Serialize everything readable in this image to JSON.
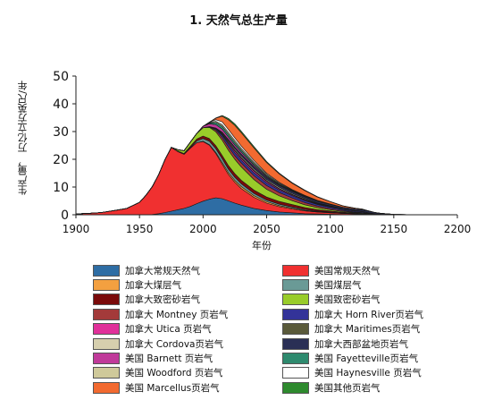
{
  "chart_data": {
    "type": "area",
    "title": "1. 天然气总生产量",
    "xlabel": "年份",
    "ylabel": "生产量， 万亿立方英尺/年",
    "xlim": [
      1900,
      2200
    ],
    "ylim": [
      0,
      50
    ],
    "x_ticks": [
      "1900",
      "1950",
      "2000",
      "2050",
      "2100",
      "2150",
      "2200"
    ],
    "y_ticks": [
      "0",
      "10",
      "20",
      "30",
      "40",
      "50"
    ],
    "legend_position": "below",
    "x": [
      1900,
      1910,
      1920,
      1930,
      1940,
      1950,
      1955,
      1960,
      1965,
      1970,
      1975,
      1980,
      1985,
      1990,
      1995,
      2000,
      2005,
      2010,
      2015,
      2020,
      2025,
      2030,
      2040,
      2050,
      2060,
      2070,
      2080,
      2090,
      2100,
      2110,
      2120,
      2125,
      2130,
      2135,
      2140,
      2150,
      2160,
      2170,
      2180
    ],
    "series": [
      {
        "name": "加拿大常规天然气",
        "color": "#2e6da4",
        "values": [
          0,
          0,
          0,
          0,
          0,
          0,
          0,
          0.1,
          0.4,
          0.8,
          1.3,
          1.8,
          2.3,
          3,
          4,
          4.9,
          5.6,
          6.1,
          5.8,
          5,
          4.2,
          3.5,
          2.3,
          1.5,
          1,
          0.7,
          0.4,
          0.3,
          0.2,
          0.1,
          0.1,
          0,
          0,
          0,
          0,
          0,
          0,
          0,
          0
        ]
      },
      {
        "name": "美国常规天然气",
        "color": "#f03030",
        "values": [
          0.3,
          0.5,
          0.8,
          1.5,
          2.3,
          4.5,
          7,
          10,
          14,
          19,
          23,
          21,
          19.5,
          21,
          22,
          21.5,
          19.5,
          16,
          12.5,
          9.5,
          7.5,
          6,
          4,
          2.7,
          1.9,
          1.4,
          1,
          0.7,
          0.5,
          0.35,
          0.25,
          0.2,
          0.15,
          0.1,
          0.1,
          0.05,
          0,
          0,
          0
        ]
      },
      {
        "name": "加拿大煤层气",
        "color": "#f3a040",
        "values": [
          0,
          0,
          0,
          0,
          0,
          0,
          0,
          0,
          0,
          0,
          0,
          0,
          0,
          0,
          0,
          0.1,
          0.2,
          0.4,
          0.6,
          0.7,
          0.7,
          0.7,
          0.6,
          0.5,
          0.4,
          0.3,
          0.2,
          0.15,
          0.1,
          0.05,
          0,
          0,
          0,
          0,
          0,
          0,
          0,
          0,
          0
        ]
      },
      {
        "name": "美国煤层气",
        "color": "#6a9a96",
        "values": [
          0,
          0,
          0,
          0,
          0,
          0,
          0,
          0,
          0,
          0,
          0,
          0,
          0,
          0.2,
          0.6,
          1,
          1.2,
          1.3,
          1.3,
          1.2,
          1.1,
          1,
          0.8,
          0.6,
          0.5,
          0.4,
          0.3,
          0.2,
          0.15,
          0.1,
          0.05,
          0,
          0,
          0,
          0,
          0,
          0,
          0,
          0
        ]
      },
      {
        "name": "加拿大致密砂岩气",
        "color": "#7a0a0a",
        "values": [
          0,
          0,
          0,
          0,
          0,
          0,
          0,
          0,
          0,
          0,
          0,
          0.2,
          0.3,
          0.5,
          0.7,
          0.9,
          1,
          1.1,
          1.2,
          1.3,
          1.3,
          1.3,
          1.2,
          1.1,
          1,
          0.9,
          0.7,
          0.5,
          0.4,
          0.3,
          0.2,
          0.2,
          0.15,
          0.1,
          0.05,
          0,
          0,
          0,
          0
        ]
      },
      {
        "name": "美国致密砂岩气",
        "color": "#99cc2a",
        "values": [
          0,
          0,
          0,
          0,
          0,
          0,
          0,
          0,
          0,
          0,
          0,
          0.5,
          1,
          1.5,
          2,
          3,
          4,
          5,
          5.5,
          5.5,
          5.2,
          4.8,
          3.8,
          2.8,
          2,
          1.4,
          1,
          0.7,
          0.5,
          0.3,
          0.2,
          0.2,
          0.1,
          0.05,
          0,
          0,
          0,
          0,
          0
        ]
      },
      {
        "name": "加拿大 Montney 页岩气",
        "color": "#a33a3a",
        "values": [
          0,
          0,
          0,
          0,
          0,
          0,
          0,
          0,
          0,
          0,
          0,
          0,
          0,
          0,
          0,
          0,
          0.2,
          0.6,
          1,
          1.2,
          1.3,
          1.4,
          1.4,
          1.3,
          1.2,
          1,
          0.8,
          0.6,
          0.4,
          0.3,
          0.2,
          0.2,
          0.1,
          0.05,
          0,
          0,
          0,
          0,
          0
        ]
      },
      {
        "name": "加拿大 Horn River页岩气",
        "color": "#333399",
        "values": [
          0,
          0,
          0,
          0,
          0,
          0,
          0,
          0,
          0,
          0,
          0,
          0,
          0,
          0,
          0,
          0,
          0.1,
          0.4,
          0.8,
          1,
          1.1,
          1.1,
          1.1,
          1,
          0.9,
          0.8,
          0.7,
          0.6,
          0.5,
          0.4,
          0.3,
          0.3,
          0.2,
          0.1,
          0.05,
          0,
          0,
          0,
          0
        ]
      },
      {
        "name": "加拿大 Utica 页岩气",
        "color": "#e0309a",
        "values": [
          0,
          0,
          0,
          0,
          0,
          0,
          0,
          0,
          0,
          0,
          0,
          0,
          0,
          0,
          0,
          0,
          0,
          0.1,
          0.3,
          0.5,
          0.6,
          0.6,
          0.6,
          0.5,
          0.4,
          0.3,
          0.3,
          0.2,
          0.2,
          0.1,
          0.1,
          0.05,
          0,
          0,
          0,
          0,
          0,
          0,
          0
        ]
      },
      {
        "name": "加拿大 Maritimes页岩气",
        "color": "#5a5a3a",
        "values": [
          0,
          0,
          0,
          0,
          0,
          0,
          0,
          0,
          0,
          0,
          0,
          0,
          0,
          0,
          0,
          0,
          0,
          0.1,
          0.2,
          0.3,
          0.3,
          0.3,
          0.3,
          0.3,
          0.2,
          0.2,
          0.2,
          0.1,
          0.1,
          0.1,
          0.05,
          0,
          0,
          0,
          0,
          0,
          0,
          0,
          0
        ]
      },
      {
        "name": "加拿大 Cordova页岩气",
        "color": "#d6cfae",
        "values": [
          0,
          0,
          0,
          0,
          0,
          0,
          0,
          0,
          0,
          0,
          0,
          0,
          0,
          0,
          0,
          0,
          0,
          0.1,
          0.3,
          0.4,
          0.5,
          0.5,
          0.5,
          0.4,
          0.4,
          0.3,
          0.3,
          0.2,
          0.2,
          0.1,
          0.1,
          0.1,
          0.05,
          0,
          0,
          0,
          0,
          0,
          0
        ]
      },
      {
        "name": "加拿大西部盆地页岩气",
        "color": "#2a2f55",
        "values": [
          0,
          0,
          0,
          0,
          0,
          0,
          0,
          0,
          0,
          0,
          0,
          0,
          0,
          0,
          0,
          0,
          0,
          0.1,
          0.3,
          0.5,
          0.6,
          0.7,
          0.8,
          0.8,
          0.7,
          0.7,
          0.6,
          0.6,
          0.5,
          0.5,
          0.5,
          0.6,
          0.6,
          0.4,
          0.3,
          0.1,
          0.05,
          0,
          0
        ]
      },
      {
        "name": "美国 Barnett 页岩气",
        "color": "#c03a9a",
        "values": [
          0,
          0,
          0,
          0,
          0,
          0,
          0,
          0,
          0,
          0,
          0,
          0,
          0,
          0,
          0,
          0.5,
          1,
          1.2,
          1.1,
          0.9,
          0.8,
          0.7,
          0.5,
          0.3,
          0.2,
          0.1,
          0.1,
          0.05,
          0,
          0,
          0,
          0,
          0,
          0,
          0,
          0,
          0,
          0,
          0
        ]
      },
      {
        "name": "美国 Fayetteville页岩气",
        "color": "#2e8a6e",
        "values": [
          0,
          0,
          0,
          0,
          0,
          0,
          0,
          0,
          0,
          0,
          0,
          0,
          0,
          0,
          0,
          0,
          0.3,
          0.8,
          1,
          1,
          0.9,
          0.8,
          0.6,
          0.4,
          0.3,
          0.2,
          0.1,
          0.1,
          0.05,
          0,
          0,
          0,
          0,
          0,
          0,
          0,
          0,
          0,
          0
        ]
      },
      {
        "name": "美国 Woodford 页岩气",
        "color": "#cfc99a",
        "values": [
          0,
          0,
          0,
          0,
          0,
          0,
          0,
          0,
          0,
          0,
          0,
          0,
          0,
          0,
          0,
          0,
          0.2,
          0.4,
          0.6,
          0.7,
          0.7,
          0.6,
          0.5,
          0.4,
          0.3,
          0.2,
          0.2,
          0.1,
          0.05,
          0,
          0,
          0,
          0,
          0,
          0,
          0,
          0,
          0,
          0
        ]
      },
      {
        "name": "美国 Haynesville 页岩气",
        "color": "#ffffff",
        "values": [
          0,
          0,
          0,
          0,
          0,
          0,
          0,
          0,
          0,
          0,
          0,
          0,
          0,
          0,
          0,
          0,
          0.1,
          0.6,
          1,
          1,
          0.9,
          0.8,
          0.6,
          0.4,
          0.3,
          0.2,
          0.1,
          0.1,
          0.05,
          0,
          0,
          0,
          0,
          0,
          0,
          0,
          0,
          0,
          0
        ]
      },
      {
        "name": "美国 Marcellus页岩气",
        "color": "#f26a30",
        "values": [
          0,
          0,
          0,
          0,
          0,
          0,
          0,
          0,
          0,
          0,
          0,
          0,
          0,
          0,
          0,
          0,
          0,
          0.5,
          2,
          3.5,
          4.5,
          4.8,
          4.5,
          3.8,
          3,
          2.3,
          1.7,
          1.2,
          0.8,
          0.5,
          0.3,
          0.2,
          0.1,
          0.05,
          0,
          0,
          0,
          0,
          0
        ]
      },
      {
        "name": "美国其他页岩气",
        "color": "#2e8a2e",
        "values": [
          0,
          0,
          0,
          0,
          0,
          0,
          0,
          0,
          0,
          0,
          0,
          0,
          0,
          0,
          0,
          0,
          0,
          0.1,
          0.3,
          0.5,
          0.6,
          0.6,
          0.5,
          0.4,
          0.3,
          0.2,
          0.2,
          0.1,
          0.1,
          0.05,
          0,
          0,
          0,
          0,
          0,
          0,
          0,
          0,
          0
        ]
      }
    ]
  }
}
